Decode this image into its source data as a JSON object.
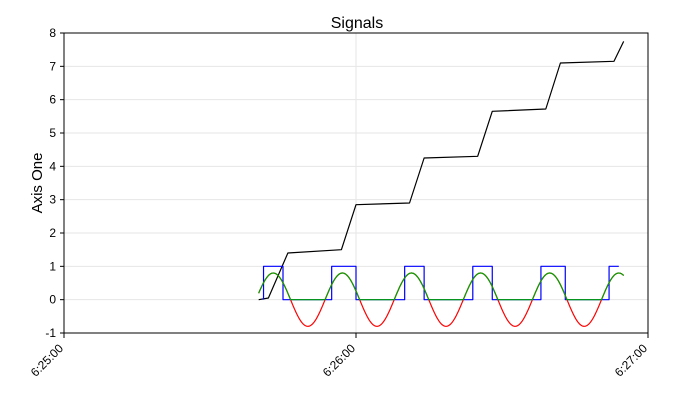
{
  "colors": {
    "background": "#ffffff",
    "grid": "#e6e6e6",
    "axis": "#000000",
    "series_black": "#000000",
    "series_blue": "#0000ff",
    "series_green": "#00a000",
    "series_red": "#ff0000"
  },
  "chart_data": {
    "type": "line",
    "title": "Signals",
    "xlabel": "",
    "ylabel": "Axis One",
    "xlim": [
      "6:25:00",
      "6:27:00"
    ],
    "ylim": [
      -1,
      8
    ],
    "x_ticks": [
      "6:25:00",
      "6:26:00",
      "6:27:00"
    ],
    "y_ticks": [
      -1,
      0,
      1,
      2,
      3,
      4,
      5,
      6,
      7,
      8
    ],
    "grid": true,
    "legend": "none",
    "series": [
      {
        "color": "#000000",
        "points": [
          [
            "6:25:40",
            0.0
          ],
          [
            "6:25:42",
            0.05
          ],
          [
            "6:25:46",
            1.4
          ],
          [
            "6:25:57",
            1.5
          ],
          [
            "6:26:00",
            2.85
          ],
          [
            "6:26:11",
            2.9
          ],
          [
            "6:26:14",
            4.25
          ],
          [
            "6:26:25",
            4.3
          ],
          [
            "6:26:28",
            5.65
          ],
          [
            "6:26:39",
            5.72
          ],
          [
            "6:26:42",
            7.1
          ],
          [
            "6:26:53",
            7.15
          ],
          [
            "6:26:55",
            7.75
          ]
        ]
      },
      {
        "color": "#0000ff",
        "points": [
          [
            "6:25:41",
            0.0
          ],
          [
            "6:25:41",
            1.0
          ],
          [
            "6:25:45",
            1.0
          ],
          [
            "6:25:45",
            0.0
          ],
          [
            "6:25:55",
            0.0
          ],
          [
            "6:25:55",
            1.0
          ],
          [
            "6:26:00",
            1.0
          ],
          [
            "6:26:00",
            0.0
          ],
          [
            "6:26:10",
            0.0
          ],
          [
            "6:26:10",
            1.0
          ],
          [
            "6:26:14",
            1.0
          ],
          [
            "6:26:14",
            0.0
          ],
          [
            "6:26:24",
            0.0
          ],
          [
            "6:26:24",
            1.0
          ],
          [
            "6:26:28",
            1.0
          ],
          [
            "6:26:28",
            0.0
          ],
          [
            "6:26:38",
            0.0
          ],
          [
            "6:26:38",
            1.0
          ],
          [
            "6:26:43",
            1.0
          ],
          [
            "6:26:43",
            0.0
          ],
          [
            "6:26:52",
            0.0
          ],
          [
            "6:26:52",
            1.0
          ],
          [
            "6:26:54",
            1.0
          ]
        ]
      },
      {
        "color": "#ff0000",
        "wave": {
          "start": "6:25:40",
          "end": "6:26:55",
          "period_s": 14.2,
          "peak_at": "6:25:43",
          "amplitude": 0.8
        }
      },
      {
        "color": "#00a000",
        "wave": {
          "start": "6:25:40",
          "end": "6:26:55",
          "period_s": 14.2,
          "peak_at": "6:25:43",
          "amplitude": 0.8,
          "clip_below": 0
        }
      }
    ]
  }
}
